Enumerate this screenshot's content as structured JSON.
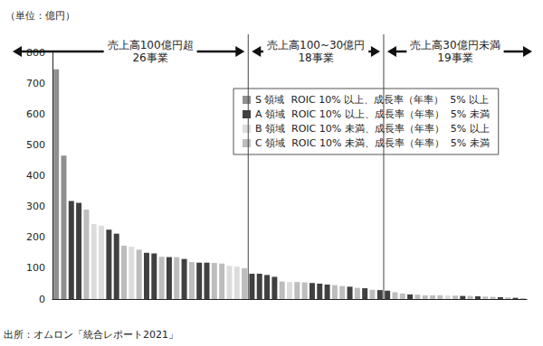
{
  "chart_data": {
    "type": "bar",
    "ylabel": "（単位：億円）",
    "source": "出所：オムロン「統合レポート2021」",
    "categories": [
      null,
      null,
      null,
      null,
      null,
      null,
      null,
      null,
      null,
      null,
      null,
      null,
      null,
      null,
      null,
      null,
      null,
      null,
      null,
      null,
      null,
      null,
      null,
      null,
      null,
      null,
      null,
      null,
      null,
      null,
      null,
      null,
      null,
      null,
      null,
      null,
      null,
      null,
      null,
      null,
      null,
      null,
      null,
      null,
      null,
      null,
      null,
      null,
      null,
      null,
      null,
      null,
      null,
      null,
      null,
      null,
      null,
      null,
      null,
      null,
      null,
      null,
      null
    ],
    "series": [
      {
        "name": "S 領域  ROIC 10% 以上、成長率（年率）  5% 以上",
        "color": "#8f8f8f",
        "values": [
          745,
          465,
          null,
          null,
          null,
          null,
          null,
          null,
          null,
          null,
          null,
          null,
          null,
          null,
          null,
          null,
          null,
          null,
          null,
          null,
          null,
          null,
          null,
          null,
          null,
          null,
          null,
          null,
          null,
          null,
          null,
          null,
          null,
          null,
          null,
          null,
          null,
          null,
          null,
          null,
          null,
          null,
          null,
          null,
          null,
          null,
          null,
          null,
          null,
          null,
          null,
          null,
          null,
          null,
          null,
          null,
          null,
          null,
          null,
          null,
          null,
          null,
          null
        ]
      },
      {
        "name": "A 領域  ROIC 10% 以上、成長率（年率）  5% 未満",
        "color": "#404040",
        "values": [
          null,
          null,
          318,
          312,
          null,
          null,
          null,
          225,
          212,
          null,
          null,
          null,
          150,
          148,
          null,
          136,
          null,
          130,
          null,
          118,
          118,
          null,
          null,
          null,
          null,
          null,
          82,
          82,
          78,
          72,
          null,
          null,
          null,
          null,
          52,
          50,
          47,
          null,
          null,
          40,
          null,
          35,
          null,
          29,
          27,
          null,
          null,
          15,
          null,
          null,
          null,
          null,
          null,
          null,
          10,
          null,
          9,
          null,
          null,
          6,
          null,
          4,
          null
        ]
      },
      {
        "name": "B 領域  ROIC 10% 未満、成長率（年率）  5% 以上",
        "color": "#dcdcdc",
        "values": [
          null,
          null,
          null,
          null,
          null,
          243,
          238,
          null,
          null,
          null,
          170,
          null,
          null,
          null,
          null,
          null,
          null,
          null,
          null,
          null,
          null,
          null,
          null,
          108,
          105,
          null,
          null,
          null,
          null,
          null,
          null,
          55,
          null,
          null,
          null,
          null,
          null,
          null,
          null,
          null,
          null,
          null,
          null,
          null,
          null,
          null,
          null,
          null,
          null,
          null,
          null,
          null,
          11,
          null,
          null,
          null,
          null,
          null,
          null,
          null,
          null,
          null,
          null
        ]
      },
      {
        "name": "C 領域  ROIC 10% 未満、成長率（年率）  5% 未満",
        "color": "#bdbdbd",
        "values": [
          null,
          null,
          null,
          null,
          290,
          null,
          null,
          null,
          null,
          173,
          null,
          160,
          null,
          null,
          137,
          null,
          136,
          null,
          120,
          null,
          null,
          117,
          115,
          null,
          null,
          100,
          null,
          null,
          null,
          null,
          57,
          null,
          55,
          54,
          null,
          null,
          null,
          45,
          42,
          null,
          36,
          null,
          30,
          null,
          null,
          22,
          18,
          null,
          14,
          12,
          12,
          12,
          null,
          11,
          null,
          10,
          null,
          8,
          7,
          null,
          5,
          null,
          3
        ]
      }
    ],
    "groups": [
      {
        "title": "売上高100億円超",
        "note": "26事業",
        "count": 26
      },
      {
        "title": "売上高100~30億円",
        "note": "18事業",
        "count": 18
      },
      {
        "title": "売上高30億円未満",
        "note": "19事業",
        "count": 19
      }
    ],
    "ylim": [
      0,
      800
    ],
    "yticks": [
      0,
      100,
      200,
      300,
      400,
      500,
      600,
      700,
      800
    ],
    "grid": false,
    "legend": "upper right",
    "tick_labels": "y"
  }
}
